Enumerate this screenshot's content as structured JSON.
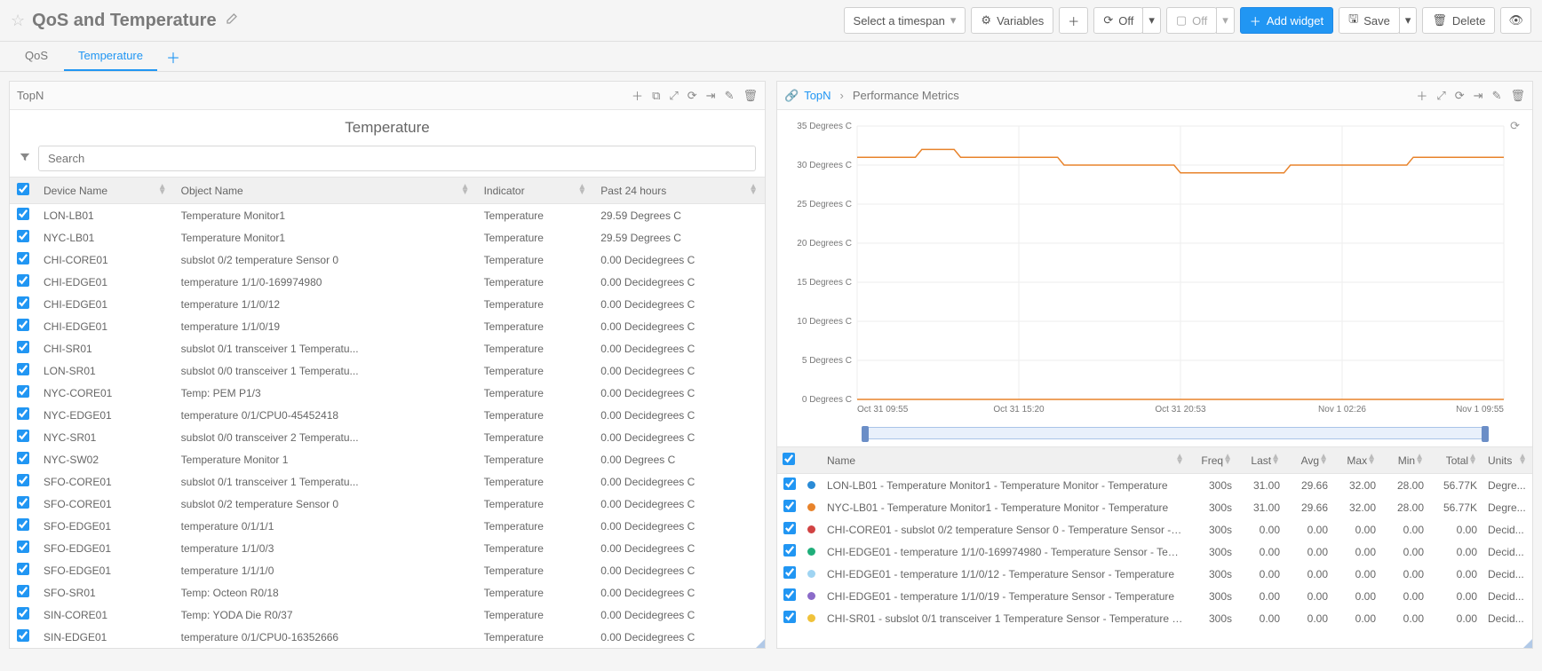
{
  "header": {
    "title": "QoS and Temperature",
    "select_timespan": "Select a timespan",
    "variables": "Variables",
    "off1": "Off",
    "off2": "Off",
    "add_widget": "Add widget",
    "save": "Save",
    "delete": "Delete"
  },
  "tabs": {
    "qos": "QoS",
    "temperature": "Temperature"
  },
  "left_panel": {
    "header": "TopN",
    "title": "Temperature",
    "search_placeholder": "Search",
    "columns": {
      "device": "Device Name",
      "object": "Object Name",
      "indicator": "Indicator",
      "p24": "Past 24 hours"
    },
    "rows": [
      {
        "device": "LON-LB01",
        "object": "Temperature Monitor1",
        "indicator": "Temperature",
        "p24": "29.59 Degrees C"
      },
      {
        "device": "NYC-LB01",
        "object": "Temperature Monitor1",
        "indicator": "Temperature",
        "p24": "29.59 Degrees C"
      },
      {
        "device": "CHI-CORE01",
        "object": "subslot 0/2 temperature Sensor 0",
        "indicator": "Temperature",
        "p24": "0.00 Decidegrees C"
      },
      {
        "device": "CHI-EDGE01",
        "object": "temperature 1/1/0-169974980",
        "indicator": "Temperature",
        "p24": "0.00 Decidegrees C"
      },
      {
        "device": "CHI-EDGE01",
        "object": "temperature 1/1/0/12",
        "indicator": "Temperature",
        "p24": "0.00 Decidegrees C"
      },
      {
        "device": "CHI-EDGE01",
        "object": "temperature 1/1/0/19",
        "indicator": "Temperature",
        "p24": "0.00 Decidegrees C"
      },
      {
        "device": "CHI-SR01",
        "object": "subslot 0/1 transceiver 1 Temperatu...",
        "indicator": "Temperature",
        "p24": "0.00 Decidegrees C"
      },
      {
        "device": "LON-SR01",
        "object": "subslot 0/0 transceiver 1 Temperatu...",
        "indicator": "Temperature",
        "p24": "0.00 Decidegrees C"
      },
      {
        "device": "NYC-CORE01",
        "object": "Temp: PEM P1/3",
        "indicator": "Temperature",
        "p24": "0.00 Decidegrees C"
      },
      {
        "device": "NYC-EDGE01",
        "object": "temperature 0/1/CPU0-45452418",
        "indicator": "Temperature",
        "p24": "0.00 Decidegrees C"
      },
      {
        "device": "NYC-SR01",
        "object": "subslot 0/0 transceiver 2 Temperatu...",
        "indicator": "Temperature",
        "p24": "0.00 Decidegrees C"
      },
      {
        "device": "NYC-SW02",
        "object": "Temperature Monitor 1",
        "indicator": "Temperature",
        "p24": "0.00 Degrees C"
      },
      {
        "device": "SFO-CORE01",
        "object": "subslot 0/1 transceiver 1 Temperatu...",
        "indicator": "Temperature",
        "p24": "0.00 Decidegrees C"
      },
      {
        "device": "SFO-CORE01",
        "object": "subslot 0/2 temperature Sensor 0",
        "indicator": "Temperature",
        "p24": "0.00 Decidegrees C"
      },
      {
        "device": "SFO-EDGE01",
        "object": "temperature 0/1/1/1",
        "indicator": "Temperature",
        "p24": "0.00 Decidegrees C"
      },
      {
        "device": "SFO-EDGE01",
        "object": "temperature 1/1/0/3",
        "indicator": "Temperature",
        "p24": "0.00 Decidegrees C"
      },
      {
        "device": "SFO-EDGE01",
        "object": "temperature 1/1/1/0",
        "indicator": "Temperature",
        "p24": "0.00 Decidegrees C"
      },
      {
        "device": "SFO-SR01",
        "object": "Temp: Octeon R0/18",
        "indicator": "Temperature",
        "p24": "0.00 Decidegrees C"
      },
      {
        "device": "SIN-CORE01",
        "object": "Temp: YODA Die R0/37",
        "indicator": "Temperature",
        "p24": "0.00 Decidegrees C"
      },
      {
        "device": "SIN-EDGE01",
        "object": "temperature 0/1/CPU0-16352666",
        "indicator": "Temperature",
        "p24": "0.00 Decidegrees C"
      }
    ]
  },
  "right_panel": {
    "crumb1": "TopN",
    "crumb2": "Performance Metrics",
    "chart": {
      "type": "line",
      "ymin": 0,
      "ymax": 35,
      "ystep": 5,
      "yunit_suffix": " Degrees C",
      "xlabels": [
        "Oct 31 09:55",
        "Oct 31 15:20",
        "Oct 31 20:53",
        "Nov 1 02:26",
        "Nov 1 09:55"
      ],
      "grid_color": "#eeeeee",
      "axis_color": "#888888",
      "background": "#ffffff",
      "series": [
        {
          "color": "#e8832b",
          "width": 1.5,
          "points": [
            [
              0,
              31
            ],
            [
              0.09,
              31
            ],
            [
              0.1,
              32
            ],
            [
              0.15,
              32
            ],
            [
              0.16,
              31
            ],
            [
              0.31,
              31
            ],
            [
              0.32,
              30
            ],
            [
              0.49,
              30
            ],
            [
              0.5,
              29
            ],
            [
              0.66,
              29
            ],
            [
              0.67,
              30
            ],
            [
              0.85,
              30
            ],
            [
              0.86,
              31
            ],
            [
              1,
              31
            ]
          ]
        },
        {
          "color": "#e8832b",
          "width": 1.5,
          "points": [
            [
              0,
              0
            ],
            [
              1,
              0
            ]
          ]
        }
      ]
    },
    "legend": {
      "columns": {
        "name": "Name",
        "freq": "Freq",
        "last": "Last",
        "avg": "Avg",
        "max": "Max",
        "min": "Min",
        "total": "Total",
        "units": "Units"
      },
      "rows": [
        {
          "color": "#2a8bd6",
          "name": "LON-LB01 - Temperature Monitor1 - Temperature Monitor - Temperature",
          "freq": "300s",
          "last": "31.00",
          "avg": "29.66",
          "max": "32.00",
          "min": "28.00",
          "total": "56.77K",
          "units": "Degre..."
        },
        {
          "color": "#e8832b",
          "name": "NYC-LB01 - Temperature Monitor1 - Temperature Monitor - Temperature",
          "freq": "300s",
          "last": "31.00",
          "avg": "29.66",
          "max": "32.00",
          "min": "28.00",
          "total": "56.77K",
          "units": "Degre..."
        },
        {
          "color": "#d14343",
          "name": "CHI-CORE01 - subslot 0/2 temperature Sensor 0 - Temperature Sensor - Tem...",
          "freq": "300s",
          "last": "0.00",
          "avg": "0.00",
          "max": "0.00",
          "min": "0.00",
          "total": "0.00",
          "units": "Decid..."
        },
        {
          "color": "#1fae7a",
          "name": "CHI-EDGE01 - temperature 1/1/0-169974980 - Temperature Sensor - Temper...",
          "freq": "300s",
          "last": "0.00",
          "avg": "0.00",
          "max": "0.00",
          "min": "0.00",
          "total": "0.00",
          "units": "Decid..."
        },
        {
          "color": "#9fd4f2",
          "name": "CHI-EDGE01 - temperature 1/1/0/12 - Temperature Sensor - Temperature",
          "freq": "300s",
          "last": "0.00",
          "avg": "0.00",
          "max": "0.00",
          "min": "0.00",
          "total": "0.00",
          "units": "Decid..."
        },
        {
          "color": "#8b6bc9",
          "name": "CHI-EDGE01 - temperature 1/1/0/19 - Temperature Sensor - Temperature",
          "freq": "300s",
          "last": "0.00",
          "avg": "0.00",
          "max": "0.00",
          "min": "0.00",
          "total": "0.00",
          "units": "Decid..."
        },
        {
          "color": "#f0c23a",
          "name": "CHI-SR01 - subslot 0/1 transceiver 1 Temperature Sensor - Temperature Sen...",
          "freq": "300s",
          "last": "0.00",
          "avg": "0.00",
          "max": "0.00",
          "min": "0.00",
          "total": "0.00",
          "units": "Decid..."
        }
      ]
    }
  }
}
